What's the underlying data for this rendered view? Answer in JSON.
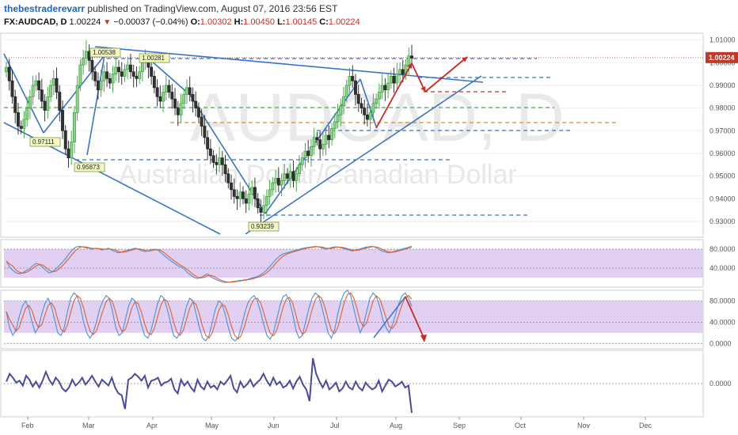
{
  "header": {
    "author": "thebestraderevarr",
    "published": " published on TradingView.com, August 07, 2016 23:56 EST",
    "symbol": "FX:AUDCAD, D",
    "last": "1.00224",
    "arrow": "▼",
    "change": "−0.00037 (−0.04%)",
    "o_label": "O:",
    "o_value": "1.00302",
    "h_label": "H:",
    "h_value": "1.00450",
    "l_label": "L:",
    "l_value": "1.00145",
    "c_label": "C:",
    "c_value": "1.00224"
  },
  "watermark": {
    "symbol": "AUDCAD, D",
    "name": "Australian Dollar/Canadian Dollar"
  },
  "colors": {
    "up": "#3aa03a",
    "down": "#222222",
    "trendline": "#3a74c9",
    "stoch_k": "#4a90d9",
    "stoch_d": "#e0602a",
    "panel_fill": "#dcc8f0",
    "oscillator": "#4b4b9e",
    "arrow": "#d02828",
    "price_marker": "#c0392b"
  },
  "chart_data": {
    "type": "candlestick",
    "x_months": [
      "Feb",
      "Mar",
      "Apr",
      "May",
      "Jun",
      "Jul",
      "Aug",
      "Sep",
      "Oct",
      "Nov",
      "Dec"
    ],
    "price_axis": {
      "ticks": [
        "1.01000",
        "1.00000",
        "0.99000",
        "0.98000",
        "0.97000",
        "0.96000",
        "0.95000",
        "0.94000",
        "0.93000"
      ],
      "ylim": [
        0.923,
        1.013
      ],
      "current_price": "1.00224"
    },
    "price_closes": [
      0.998,
      0.992,
      0.985,
      0.978,
      0.972,
      0.971,
      0.975,
      0.98,
      0.985,
      0.99,
      0.992,
      0.988,
      0.983,
      0.979,
      0.985,
      0.99,
      0.993,
      0.987,
      0.979,
      0.97,
      0.962,
      0.958,
      0.965,
      0.978,
      0.99,
      0.999,
      1.002,
      1.005,
      1.001,
      0.996,
      0.992,
      0.988,
      0.992,
      0.996,
      0.993,
      0.991,
      0.995,
      0.998,
      0.996,
      0.994,
      0.997,
      0.999,
      0.996,
      0.994,
      0.993,
      0.996,
      1.0,
      1.001,
      0.998,
      0.994,
      0.989,
      0.985,
      0.983,
      0.987,
      0.99,
      0.987,
      0.984,
      0.98,
      0.977,
      0.982,
      0.986,
      0.989,
      0.986,
      0.983,
      0.98,
      0.976,
      0.972,
      0.967,
      0.962,
      0.959,
      0.956,
      0.955,
      0.958,
      0.955,
      0.951,
      0.947,
      0.944,
      0.941,
      0.94,
      0.943,
      0.94,
      0.938,
      0.942,
      0.945,
      0.94,
      0.936,
      0.934,
      0.937,
      0.941,
      0.944,
      0.947,
      0.949,
      0.946,
      0.948,
      0.951,
      0.949,
      0.952,
      0.948,
      0.951,
      0.955,
      0.958,
      0.961,
      0.959,
      0.963,
      0.967,
      0.966,
      0.962,
      0.964,
      0.968,
      0.966,
      0.971,
      0.974,
      0.977,
      0.981,
      0.985,
      0.99,
      0.994,
      0.992,
      0.986,
      0.982,
      0.98,
      0.977,
      0.975,
      0.978,
      0.982,
      0.984,
      0.987,
      0.99,
      0.988,
      0.991,
      0.994,
      0.991,
      0.995,
      0.997,
      0.995,
      0.999,
      1.003,
      1.002
    ],
    "price_callouts": [
      "1.00538",
      "1.00281",
      "0.97111",
      "0.95873",
      "0.93239"
    ],
    "stochastic_rsi": {
      "ticks": [
        "80.0000",
        "40.0000"
      ],
      "ylim": [
        0,
        100
      ],
      "k": [
        55,
        42,
        35,
        30,
        28,
        30,
        35,
        38,
        45,
        50,
        48,
        42,
        35,
        30,
        32,
        38,
        45,
        52,
        60,
        70,
        78,
        84,
        86,
        85,
        83,
        82,
        80,
        82,
        81,
        78,
        80,
        82,
        78,
        75,
        72,
        74,
        76,
        78,
        80,
        82,
        80,
        77,
        75,
        76,
        79,
        80,
        78,
        72,
        66,
        60,
        55,
        50,
        45,
        42,
        38,
        30,
        25,
        20,
        18,
        20,
        24,
        28,
        22,
        18,
        15,
        12,
        10,
        10,
        11,
        12,
        13,
        14,
        15,
        16,
        18,
        20,
        22,
        25,
        30,
        36,
        44,
        52,
        60,
        66,
        70,
        72,
        74,
        76,
        78,
        80,
        82,
        83,
        84,
        85,
        86,
        84,
        82,
        80,
        82,
        84,
        85,
        84,
        82,
        80,
        78,
        76,
        78,
        80,
        82,
        84,
        85,
        86,
        84,
        80,
        76,
        74,
        72,
        74,
        76,
        78,
        80,
        82,
        84,
        86
      ]
    },
    "stochastic": {
      "ticks": [
        "80.0000",
        "40.0000",
        "0.0000"
      ],
      "ylim": [
        -10,
        100
      ],
      "k": [
        60,
        30,
        15,
        25,
        50,
        70,
        80,
        65,
        40,
        20,
        30,
        55,
        75,
        85,
        70,
        45,
        20,
        15,
        30,
        60,
        85,
        95,
        90,
        70,
        40,
        20,
        10,
        20,
        40,
        65,
        80,
        90,
        85,
        60,
        30,
        15,
        20,
        45,
        70,
        85,
        80,
        60,
        35,
        15,
        10,
        25,
        50,
        75,
        90,
        85,
        65,
        40,
        15,
        10,
        20,
        45,
        70,
        85,
        80,
        55,
        30,
        10,
        5,
        15,
        40,
        65,
        80,
        75,
        55,
        30,
        10,
        5,
        10,
        30,
        55,
        75,
        85,
        90,
        80,
        60,
        35,
        15,
        8,
        20,
        45,
        70,
        88,
        92,
        80,
        55,
        25,
        10,
        15,
        40,
        65,
        85,
        95,
        90,
        70,
        45,
        20,
        10,
        25,
        55,
        80,
        95,
        100,
        90,
        65,
        40,
        20,
        35,
        60,
        85,
        95,
        88,
        70,
        45,
        30,
        20,
        35,
        55,
        75,
        90,
        95,
        85,
        70
      ]
    },
    "oscillator": {
      "ticks": [
        "0.0000"
      ],
      "ylim": [
        -0.034,
        0.034
      ],
      "values": [
        0.002,
        0.01,
        0.006,
        0.001,
        0.003,
        -0.002,
        0.008,
        0.004,
        -0.003,
        0.002,
        -0.004,
        0.003,
        0.012,
        0.004,
        -0.001,
        0.006,
        0.002,
        -0.005,
        -0.008,
        -0.004,
        0.004,
        -0.002,
        0.001,
        0.006,
        -0.001,
        0.003,
        0.008,
        0.002,
        -0.003,
        0.004,
        0.001,
        -0.002,
        0.006,
        -0.004,
        -0.01,
        -0.012,
        -0.026,
        0.004,
        0.006,
        0.01,
        0.007,
        0.003,
        0.008,
        -0.004,
        0.003,
        0.004,
        0.006,
        -0.002,
        0.001,
        0.002,
        0.005,
        -0.006,
        -0.01,
        0.004,
        -0.002,
        0.002,
        -0.004,
        -0.008,
        0.004,
        -0.003,
        -0.006,
        0.002,
        -0.004,
        -0.002,
        -0.006,
        0.002,
        -0.001,
        0.003,
        0.008,
        -0.005,
        -0.009,
        0.002,
        -0.004,
        -0.001,
        0.004,
        -0.003,
        0.001,
        0.004,
        0.01,
        0.003,
        -0.002,
        0.006,
        -0.001,
        0.002,
        -0.004,
        -0.002,
        0.003,
        -0.005,
        0.002,
        0.007,
        -0.001,
        -0.006,
        -0.018,
        0.026,
        0.01,
        0.002,
        -0.004,
        0.003,
        -0.006,
        -0.003,
        0.001,
        -0.008,
        -0.005,
        0.002,
        -0.004,
        -0.006,
        0.002,
        -0.004,
        -0.007,
        0.001,
        -0.003,
        -0.006,
        -0.004,
        0.003,
        -0.008,
        -0.002,
        0.004,
        0.002,
        -0.003,
        -0.001,
        0.002,
        -0.004,
        -0.002,
        -0.03
      ]
    }
  }
}
